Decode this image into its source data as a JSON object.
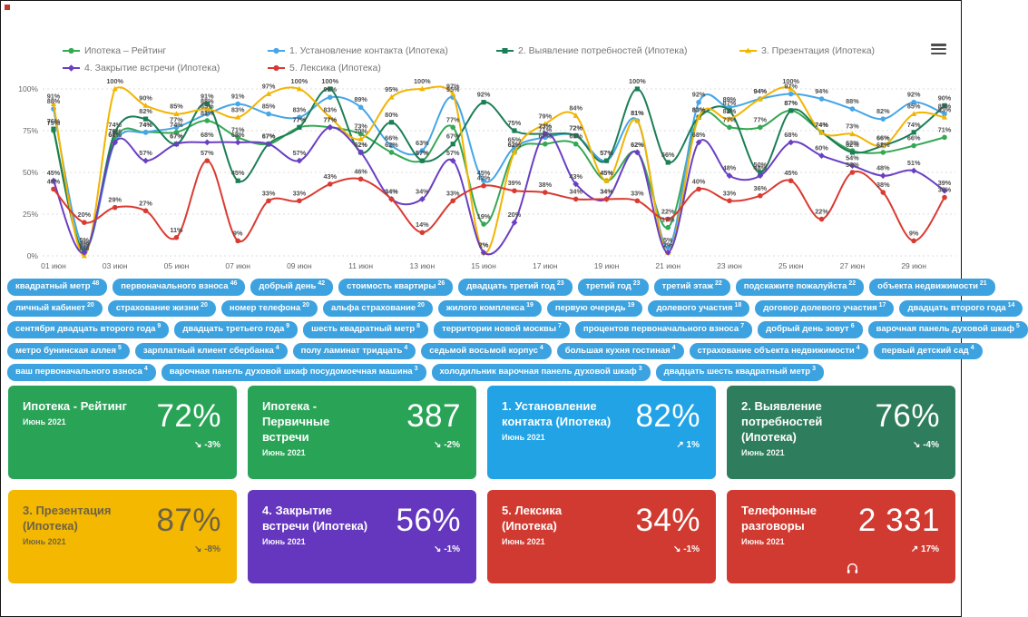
{
  "window": {
    "menu_icon": "hamburger-menu",
    "record_indicator_color": "#c0392b"
  },
  "chart_data": {
    "type": "line",
    "title": "",
    "xlabel": "",
    "ylabel": "",
    "ylim": [
      0,
      100
    ],
    "grid": true,
    "legend_position": "top",
    "y_ticks": [
      "100%",
      "75%",
      "50%",
      "25%",
      "0%"
    ],
    "x_tick_labels": [
      "01 июн",
      "03 июн",
      "05 июн",
      "07 июн",
      "09 июн",
      "11 июн",
      "13 июн",
      "15 июн",
      "17 июн",
      "19 июн",
      "21 июн",
      "23 июн",
      "25 июн",
      "27 июн",
      "29 июн"
    ],
    "n_points": 30,
    "series": [
      {
        "name": "Ипотека – Рейтинг",
        "color": "#34a853",
        "marker": "circle",
        "values": [
          75,
          3,
          70,
          74,
          74,
          81,
          71,
          67,
          77,
          77,
          73,
          62,
          57,
          77,
          19,
          62,
          67,
          67,
          45,
          62,
          17,
          83,
          77,
          77,
          87,
          74,
          63,
          62,
          66,
          71
        ]
      },
      {
        "name": "1. Установление контакта (Ипотека)",
        "color": "#45a6e8",
        "marker": "circle",
        "values": [
          88,
          5,
          68,
          74,
          77,
          85,
          91,
          85,
          83,
          95,
          89,
          66,
          63,
          95,
          45,
          65,
          71,
          72,
          57,
          81,
          5,
          92,
          89,
          94,
          97,
          94,
          88,
          82,
          92,
          85
        ]
      },
      {
        "name": "2. Выявление потребностей (Ипотека)",
        "color": "#1b7e55",
        "marker": "square",
        "values": [
          76,
          3,
          74,
          82,
          67,
          91,
          45,
          67,
          77,
          100,
          62,
          80,
          57,
          67,
          92,
          75,
          73,
          72,
          57,
          100,
          56,
          83,
          87,
          50,
          87,
          74,
          62,
          66,
          74,
          90
        ]
      },
      {
        "name": "3. Презентация (Ипотека)",
        "color": "#f3b400",
        "marker": "triangle",
        "values": [
          91,
          0,
          100,
          90,
          85,
          88,
          83,
          97,
          100,
          83,
          70,
          95,
          100,
          97,
          2,
          62,
          79,
          84,
          45,
          81,
          2,
          83,
          82,
          94,
          100,
          74,
          73,
          66,
          85,
          83
        ]
      },
      {
        "name": "4. Закрытие встречи (Ипотека)",
        "color": "#6a3fc3",
        "marker": "diamond",
        "values": [
          45,
          2,
          68,
          57,
          67,
          68,
          68,
          67,
          57,
          77,
          62,
          34,
          34,
          57,
          2,
          20,
          73,
          43,
          34,
          62,
          2,
          68,
          48,
          48,
          68,
          60,
          54,
          48,
          51,
          39
        ]
      },
      {
        "name": "5. Лексика (Ипотека)",
        "color": "#d93a31",
        "marker": "circle",
        "values": [
          40,
          20,
          29,
          27,
          11,
          57,
          9,
          33,
          33,
          43,
          46,
          34,
          14,
          33,
          42,
          39,
          38,
          34,
          34,
          33,
          22,
          40,
          33,
          36,
          45,
          22,
          50,
          38,
          9,
          35
        ]
      }
    ]
  },
  "tags_rows": [
    [
      {
        "text": "квадратный метр",
        "count": 48
      },
      {
        "text": "первоначального взноса",
        "count": 46
      },
      {
        "text": "добрый день",
        "count": 42
      },
      {
        "text": "стоимость квартиры",
        "count": 26
      },
      {
        "text": "двадцать третий год",
        "count": 23
      },
      {
        "text": "третий год",
        "count": 23
      },
      {
        "text": "третий этаж",
        "count": 22
      },
      {
        "text": "подскажите пожалуйста",
        "count": 22
      },
      {
        "text": "объекта недвижимости",
        "count": 21
      }
    ],
    [
      {
        "text": "личный кабинет",
        "count": 20
      },
      {
        "text": "страхование жизни",
        "count": 20
      },
      {
        "text": "номер телефона",
        "count": 20
      },
      {
        "text": "альфа страхование",
        "count": 20
      },
      {
        "text": "жилого комплекса",
        "count": 19
      },
      {
        "text": "первую очередь",
        "count": 19
      },
      {
        "text": "долевого участия",
        "count": 18
      },
      {
        "text": "договор долевого участия",
        "count": 17
      },
      {
        "text": "двадцать второго года",
        "count": 14
      }
    ],
    [
      {
        "text": "сентября двадцать второго года",
        "count": 9
      },
      {
        "text": "двадцать третьего года",
        "count": 9
      },
      {
        "text": "шесть квадратный метр",
        "count": 8
      },
      {
        "text": "территории новой москвы",
        "count": 7
      },
      {
        "text": "процентов первоначального взноса",
        "count": 7
      },
      {
        "text": "добрый день зовут",
        "count": 6
      },
      {
        "text": "варочная панель духовой шкаф",
        "count": 5
      }
    ],
    [
      {
        "text": "метро бунинская аллея",
        "count": 5
      },
      {
        "text": "зарплатный клиент сбербанка",
        "count": 4
      },
      {
        "text": "полу ламинат тридцать",
        "count": 4
      },
      {
        "text": "седьмой восьмой корпус",
        "count": 4
      },
      {
        "text": "большая кухня гостиная",
        "count": 4
      },
      {
        "text": "страхование объекта недвижимости",
        "count": 4
      },
      {
        "text": "первый детский сад",
        "count": 4
      }
    ],
    [
      {
        "text": "ваш первоначального взноса",
        "count": 4
      },
      {
        "text": "варочная панель духовой шкаф посудомоечная машина",
        "count": 3
      },
      {
        "text": "холодильник варочная панель духовой шкаф",
        "count": 3
      },
      {
        "text": "двадцать шесть квадратный метр",
        "count": 3
      }
    ]
  ],
  "cards": [
    {
      "title": "Ипотека - Рейтинг",
      "subtitle": "Июнь 2021",
      "value": "72%",
      "trend": "-3%",
      "direction": "down",
      "color": "#29a457"
    },
    {
      "title": "Ипотека - Первичные встречи",
      "subtitle": "Июнь 2021",
      "value": "387",
      "trend": "-2%",
      "direction": "down",
      "color": "#29a457"
    },
    {
      "title": "1. Установление контакта (Ипотека)",
      "subtitle": "Июнь 2021",
      "value": "82%",
      "trend": "1%",
      "direction": "up",
      "color": "#21a3e6"
    },
    {
      "title": "2. Выявление потребностей (Ипотека)",
      "subtitle": "Июнь 2021",
      "value": "76%",
      "trend": "-4%",
      "direction": "down",
      "color": "#2e7d5c"
    },
    {
      "title": "3. Презентация (Ипотека)",
      "subtitle": "Июнь 2021",
      "value": "87%",
      "trend": "-8%",
      "direction": "down",
      "color": "#f4b800",
      "text_color": "#6d6247"
    },
    {
      "title": "4. Закрытие встречи (Ипотека)",
      "subtitle": "Июнь 2021",
      "value": "56%",
      "trend": "-1%",
      "direction": "down",
      "color": "#6537be"
    },
    {
      "title": "5. Лексика (Ипотека)",
      "subtitle": "Июнь 2021",
      "value": "34%",
      "trend": "-1%",
      "direction": "down",
      "color": "#d13a30"
    },
    {
      "title": "Телефонные разговоры",
      "subtitle": "Июнь 2021",
      "value": "2 331",
      "trend": "17%",
      "direction": "up",
      "color": "#d13a30",
      "icon": "headphones"
    }
  ],
  "colors": {
    "chip_bg": "#3ca2e0",
    "axis_text": "#666666",
    "point_label": "#4e4e4e",
    "gridline": "#dcdcdc"
  }
}
